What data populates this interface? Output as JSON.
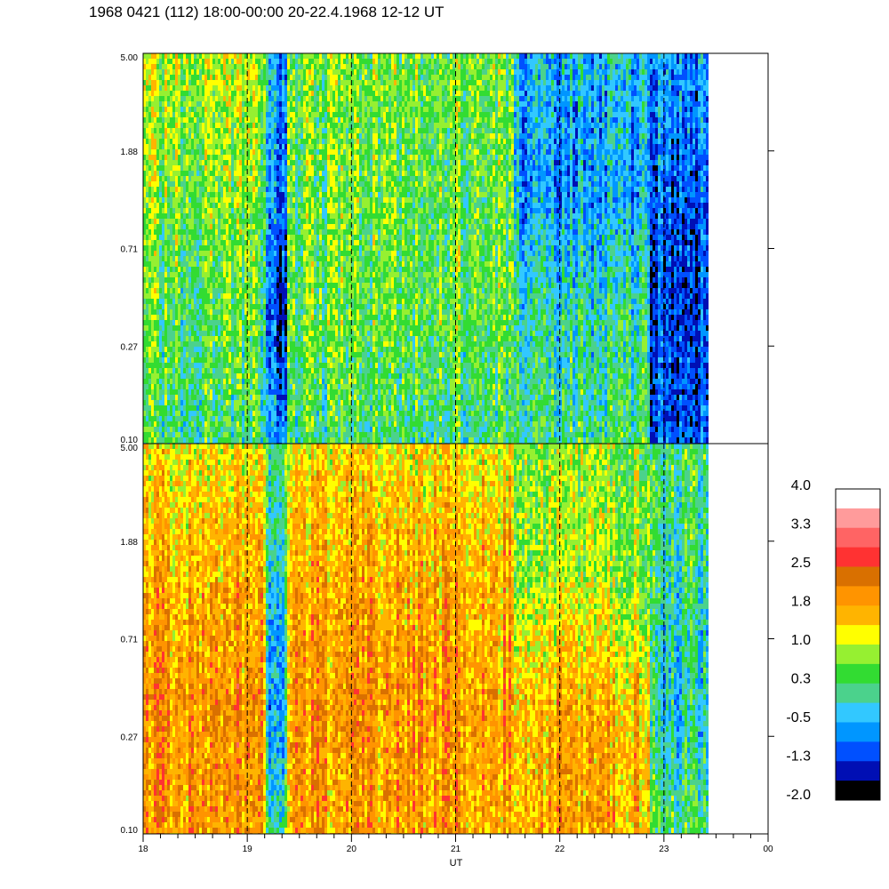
{
  "title": "1968 0421 (112) 18:00-00:00 20-22.4.1968  12-12 UT",
  "chart_data": {
    "type": "heatmap",
    "title": "1968 0421 (112) 18:00-00:00 20-22.4.1968  12-12 UT",
    "xlabel": "UT",
    "x_ticks": [
      "18",
      "19",
      "20",
      "21",
      "22",
      "23",
      "00"
    ],
    "x_range": [
      18,
      24
    ],
    "data_end": 23.43,
    "dashed_hours": [
      19,
      20,
      21,
      22,
      23
    ],
    "y_ticks": [
      "5.00",
      "1.88",
      "0.71",
      "0.27",
      "0.10"
    ],
    "y_range": [
      0.1,
      5.0
    ],
    "y_scale": "log",
    "panels": [
      {
        "name": "upper",
        "y_ticks": [
          "5.00",
          "1.88",
          "0.71",
          "0.27",
          "0.10"
        ],
        "segments": [
          {
            "x0": 18.0,
            "x1": 19.17,
            "levels": [
              0.9,
              0.6,
              0.4,
              0.2
            ]
          },
          {
            "x0": 19.17,
            "x1": 19.37,
            "levels": [
              -0.6,
              -0.9,
              -1.3,
              -0.8
            ]
          },
          {
            "x0": 19.37,
            "x1": 21.55,
            "levels": [
              0.6,
              0.5,
              0.5,
              0.2
            ]
          },
          {
            "x0": 21.55,
            "x1": 22.85,
            "levels": [
              -0.4,
              -0.6,
              0.0,
              0.2
            ]
          },
          {
            "x0": 22.85,
            "x1": 23.43,
            "levels": [
              -0.6,
              -1.0,
              -1.2,
              -1.0
            ]
          }
        ]
      },
      {
        "name": "lower",
        "y_ticks": [
          "5.00",
          "1.88",
          "0.71",
          "0.27",
          "0.10"
        ],
        "segments": [
          {
            "x0": 18.0,
            "x1": 19.17,
            "levels": [
              1.3,
              1.7,
              2.0,
              1.9
            ]
          },
          {
            "x0": 19.17,
            "x1": 19.37,
            "levels": [
              0.4,
              0.0,
              -0.4,
              0.3
            ]
          },
          {
            "x0": 19.37,
            "x1": 21.55,
            "levels": [
              1.3,
              1.7,
              1.9,
              1.8
            ]
          },
          {
            "x0": 21.55,
            "x1": 22.85,
            "levels": [
              0.7,
              0.8,
              1.6,
              1.7
            ]
          },
          {
            "x0": 22.85,
            "x1": 23.43,
            "levels": [
              0.3,
              0.1,
              -0.2,
              0.4
            ]
          }
        ]
      }
    ],
    "colorbar": {
      "labels": [
        "4.0",
        "3.3",
        "2.5",
        "1.8",
        "1.0",
        "0.3",
        "-0.5",
        "-1.3",
        "-2.0"
      ],
      "range": [
        -2.0,
        4.0
      ],
      "colors": [
        "#ffffff",
        "#ff9b9b",
        "#ff6464",
        "#ff3232",
        "#d97000",
        "#ff9400",
        "#ffb400",
        "#ffff00",
        "#96f031",
        "#32dc32",
        "#4bd28c",
        "#32c8ff",
        "#0096ff",
        "#0050ff",
        "#000fb4",
        "#000000"
      ]
    }
  }
}
